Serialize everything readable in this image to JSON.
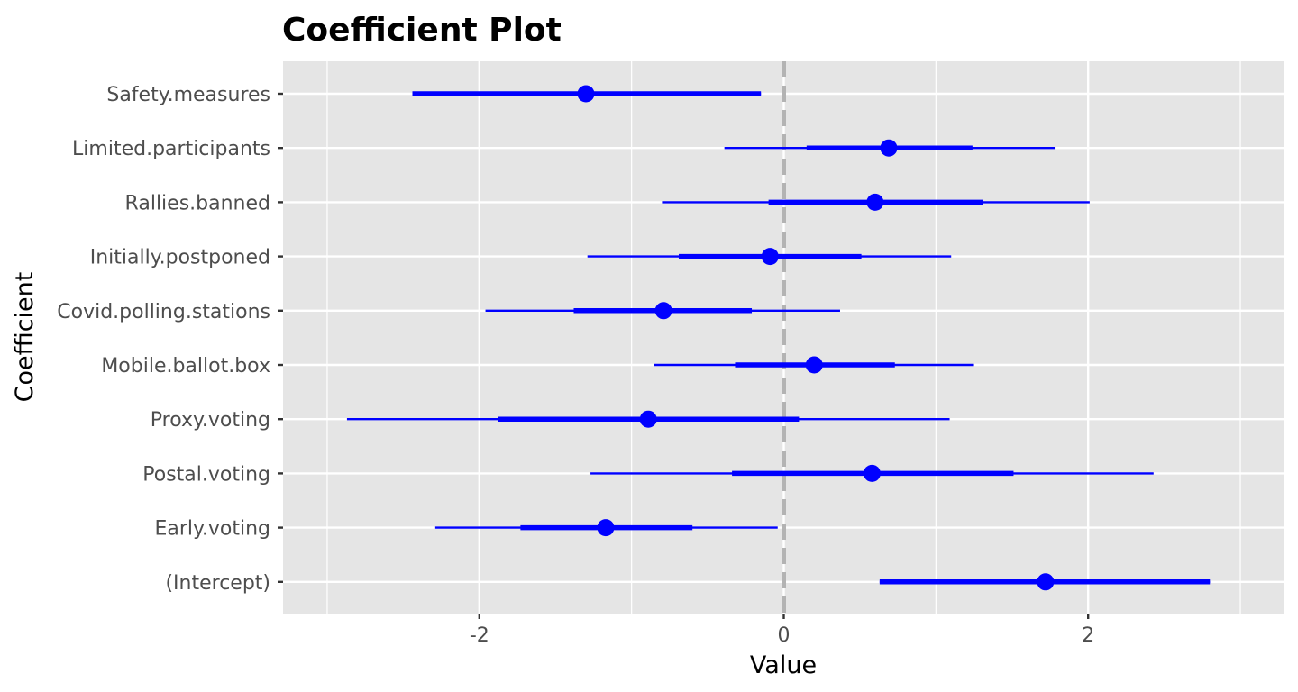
{
  "chart_data": {
    "type": "coefficient",
    "title": "Coefficient Plot",
    "xlabel": "Value",
    "ylabel": "Coefficient",
    "xlim": [
      -3.29,
      3.29
    ],
    "x_ticks": [
      -2,
      0,
      2
    ],
    "x_tick_labels": [
      "-2",
      "0",
      "2"
    ],
    "reference_line": 0,
    "grid": true,
    "point_color": "#0000ff",
    "panel_background": "#e5e5e5",
    "reference_line_color": "#b3b3b3",
    "coefficients": [
      {
        "name": "Safety.measures",
        "estimate": -1.3,
        "inner": [
          -2.44,
          -0.15
        ],
        "outer": [
          -2.44,
          -0.15
        ]
      },
      {
        "name": "Limited.participants",
        "estimate": 0.69,
        "inner": [
          0.15,
          1.24
        ],
        "outer": [
          -0.39,
          1.78
        ]
      },
      {
        "name": "Rallies.banned",
        "estimate": 0.6,
        "inner": [
          -0.1,
          1.31
        ],
        "outer": [
          -0.8,
          2.01
        ]
      },
      {
        "name": "Initially.postponed",
        "estimate": -0.09,
        "inner": [
          -0.69,
          0.51
        ],
        "outer": [
          -1.29,
          1.1
        ]
      },
      {
        "name": "Covid.polling.stations",
        "estimate": -0.79,
        "inner": [
          -1.38,
          -0.21
        ],
        "outer": [
          -1.96,
          0.37
        ]
      },
      {
        "name": "Mobile.ballot.box",
        "estimate": 0.2,
        "inner": [
          -0.32,
          0.73
        ],
        "outer": [
          -0.85,
          1.25
        ]
      },
      {
        "name": "Proxy.voting",
        "estimate": -0.89,
        "inner": [
          -1.88,
          0.1
        ],
        "outer": [
          -2.87,
          1.09
        ]
      },
      {
        "name": "Postal.voting",
        "estimate": 0.58,
        "inner": [
          -0.34,
          1.51
        ],
        "outer": [
          -1.27,
          2.43
        ]
      },
      {
        "name": "Early.voting",
        "estimate": -1.17,
        "inner": [
          -1.73,
          -0.6
        ],
        "outer": [
          -2.29,
          -0.04
        ]
      },
      {
        "name": "(Intercept)",
        "estimate": 1.72,
        "inner": [
          0.63,
          2.8
        ],
        "outer": [
          0.63,
          2.8
        ]
      }
    ]
  }
}
